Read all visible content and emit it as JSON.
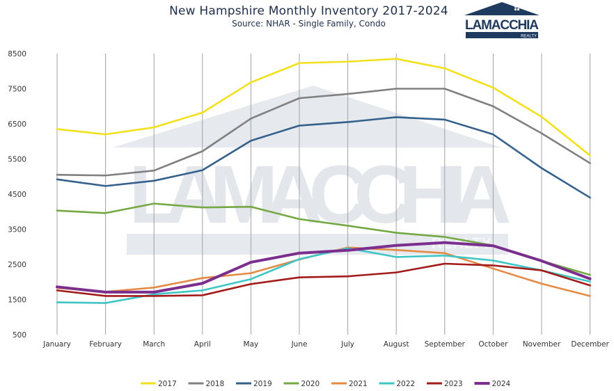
{
  "title": "New Hampshire Monthly Inventory 2017-2024",
  "subtitle": "Source: NHAR - Single Family, Condo",
  "logo": {
    "brand": "LAMACCHIA",
    "tag": "REALTY",
    "color": "#1f3a5f"
  },
  "watermark": {
    "text": "LAMACCHIA",
    "tag": "REALTY",
    "color": "#dfe3ea"
  },
  "chart_data": {
    "type": "line",
    "categories": [
      "January",
      "February",
      "March",
      "April",
      "May",
      "June",
      "July",
      "August",
      "September",
      "October",
      "November",
      "December"
    ],
    "ylim": [
      500,
      8500
    ],
    "yticks": [
      500,
      1500,
      2500,
      3500,
      4500,
      5500,
      6500,
      7500,
      8500
    ],
    "grid": "vertical",
    "legend_position": "bottom",
    "series": [
      {
        "name": "2017",
        "color": "#f2e01d",
        "values": [
          6350,
          6200,
          6400,
          6820,
          7680,
          8230,
          8270,
          8350,
          8080,
          7530,
          6700,
          5600
        ]
      },
      {
        "name": "2018",
        "color": "#808080",
        "values": [
          5050,
          5030,
          5170,
          5720,
          6650,
          7230,
          7350,
          7500,
          7500,
          7000,
          6230,
          5380
        ]
      },
      {
        "name": "2019",
        "color": "#34608c",
        "values": [
          4920,
          4730,
          4880,
          5180,
          6020,
          6450,
          6550,
          6690,
          6620,
          6200,
          5240,
          4400
        ]
      },
      {
        "name": "2020",
        "color": "#74a843",
        "values": [
          4030,
          3960,
          4230,
          4120,
          4140,
          3790,
          3600,
          3400,
          3280,
          3040,
          2600,
          2200
        ]
      },
      {
        "name": "2021",
        "color": "#e38a45",
        "values": [
          1830,
          1720,
          1840,
          2110,
          2250,
          2640,
          2980,
          2910,
          2820,
          2380,
          1950,
          1600
        ]
      },
      {
        "name": "2022",
        "color": "#3fc5c5",
        "values": [
          1420,
          1400,
          1650,
          1760,
          2080,
          2650,
          2960,
          2710,
          2750,
          2610,
          2330,
          2010
        ]
      },
      {
        "name": "2023",
        "color": "#a31a1a",
        "values": [
          1760,
          1600,
          1600,
          1620,
          1940,
          2130,
          2160,
          2270,
          2520,
          2470,
          2330,
          1900
        ]
      },
      {
        "name": "2024",
        "color": "#7a2e8e",
        "values": [
          1860,
          1710,
          1710,
          1960,
          2560,
          2820,
          2900,
          3040,
          3120,
          3030,
          2600,
          2090
        ]
      }
    ]
  }
}
